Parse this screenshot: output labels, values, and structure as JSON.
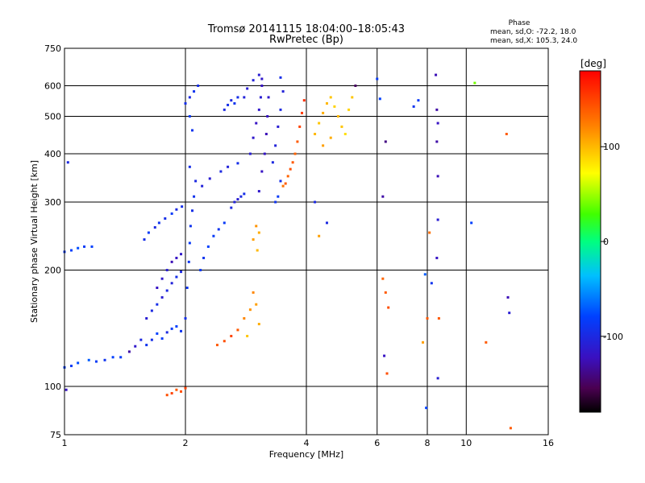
{
  "header": {
    "title_line1": "Tromsø 20141115 18:04:00–18:05:43",
    "title_line2": "RwPretec (Bp)",
    "phase_title": "Phase",
    "phase_o": "mean, sd,O: -72.2, 18.0",
    "phase_x": "mean, sd,X: 105.3, 24.0"
  },
  "colorbar": {
    "unit": "[deg]",
    "ticks": [
      {
        "label": "100",
        "value": 100
      },
      {
        "label": "0",
        "value": 0
      },
      {
        "label": "-100",
        "value": -100
      }
    ]
  },
  "chart_data": {
    "type": "scatter",
    "xlabel": "Frequency [MHz]",
    "ylabel": "Stationary phase Virtual Height [km]",
    "x_scale": "log",
    "y_scale": "log",
    "xlim": [
      1,
      16
    ],
    "ylim": [
      75,
      750
    ],
    "grid": true,
    "x_ticks": [
      {
        "label": "1",
        "value": 1
      },
      {
        "label": "2",
        "value": 2
      },
      {
        "label": "4",
        "value": 4
      },
      {
        "label": "6",
        "value": 6
      },
      {
        "label": "8",
        "value": 8
      },
      {
        "label": "10",
        "value": 10
      },
      {
        "label": "16",
        "value": 16
      }
    ],
    "y_ticks": [
      {
        "label": "75",
        "value": 75
      },
      {
        "label": "100",
        "value": 100
      },
      {
        "label": "200",
        "value": 200
      },
      {
        "label": "300",
        "value": 300
      },
      {
        "label": "400",
        "value": 400
      },
      {
        "label": "500",
        "value": 500
      },
      {
        "label": "600",
        "value": 600
      },
      {
        "label": "750",
        "value": 750
      }
    ],
    "color_scale": "phase [deg], rainbow from -180 (black/purple) to 180 (red)",
    "points": [
      [
        1.0,
        223,
        -85
      ],
      [
        1.04,
        225,
        -80
      ],
      [
        1.08,
        228,
        -75
      ],
      [
        1.12,
        230,
        -85
      ],
      [
        1.17,
        230,
        -80
      ],
      [
        1.0,
        112,
        -80
      ],
      [
        1.04,
        113,
        -85
      ],
      [
        1.08,
        115,
        -75
      ],
      [
        1.15,
        117,
        -70
      ],
      [
        1.2,
        116,
        -85
      ],
      [
        1.26,
        117,
        -90
      ],
      [
        1.32,
        119,
        -80
      ],
      [
        1.38,
        119,
        -85
      ],
      [
        1.01,
        98,
        -120
      ],
      [
        1.02,
        380,
        -100
      ],
      [
        1.45,
        123,
        -130
      ],
      [
        1.5,
        127,
        -115
      ],
      [
        1.55,
        132,
        -100
      ],
      [
        1.6,
        128,
        -90
      ],
      [
        1.65,
        132,
        -95
      ],
      [
        1.7,
        137,
        -80
      ],
      [
        1.75,
        133,
        -85
      ],
      [
        1.8,
        138,
        -100
      ],
      [
        1.85,
        141,
        -85
      ],
      [
        1.9,
        143,
        -80
      ],
      [
        1.95,
        139,
        -90
      ],
      [
        1.6,
        150,
        -110
      ],
      [
        1.65,
        157,
        -100
      ],
      [
        1.7,
        163,
        -95
      ],
      [
        1.75,
        170,
        -110
      ],
      [
        1.8,
        177,
        -100
      ],
      [
        1.85,
        185,
        -105
      ],
      [
        1.9,
        192,
        -95
      ],
      [
        1.95,
        198,
        -100
      ],
      [
        1.58,
        240,
        -95
      ],
      [
        1.62,
        250,
        -85
      ],
      [
        1.68,
        258,
        -100
      ],
      [
        1.72,
        265,
        -90
      ],
      [
        1.78,
        272,
        -95
      ],
      [
        1.85,
        280,
        -85
      ],
      [
        1.9,
        287,
        -100
      ],
      [
        1.96,
        292,
        -95
      ],
      [
        1.7,
        180,
        -120
      ],
      [
        1.75,
        190,
        -115
      ],
      [
        1.8,
        200,
        -110
      ],
      [
        1.85,
        210,
        -125
      ],
      [
        1.9,
        215,
        -120
      ],
      [
        1.95,
        220,
        -115
      ],
      [
        2.0,
        150,
        -95
      ],
      [
        2.02,
        180,
        -90
      ],
      [
        2.04,
        210,
        -88
      ],
      [
        2.05,
        235,
        -85
      ],
      [
        2.06,
        260,
        -90
      ],
      [
        2.08,
        285,
        -95
      ],
      [
        2.1,
        310,
        -92
      ],
      [
        2.12,
        340,
        -100
      ],
      [
        2.05,
        370,
        -95
      ],
      [
        2.0,
        540,
        -95
      ],
      [
        2.05,
        560,
        -100
      ],
      [
        2.1,
        580,
        -90
      ],
      [
        2.15,
        600,
        -95
      ],
      [
        2.05,
        500,
        -85
      ],
      [
        2.08,
        460,
        -90
      ],
      [
        2.18,
        200,
        -85
      ],
      [
        2.22,
        215,
        -90
      ],
      [
        2.28,
        230,
        -80
      ],
      [
        2.35,
        245,
        -85
      ],
      [
        2.42,
        255,
        -90
      ],
      [
        2.5,
        265,
        -85
      ],
      [
        2.6,
        290,
        -100
      ],
      [
        2.65,
        300,
        -105
      ],
      [
        2.7,
        305,
        -110
      ],
      [
        2.75,
        310,
        -100
      ],
      [
        2.8,
        315,
        -95
      ],
      [
        2.2,
        330,
        -105
      ],
      [
        2.3,
        345,
        -110
      ],
      [
        2.45,
        360,
        -100
      ],
      [
        2.55,
        370,
        -105
      ],
      [
        2.7,
        378,
        -95
      ],
      [
        2.5,
        520,
        -100
      ],
      [
        2.55,
        535,
        -95
      ],
      [
        2.6,
        550,
        -100
      ],
      [
        2.65,
        540,
        -90
      ],
      [
        2.7,
        560,
        -95
      ],
      [
        2.8,
        560,
        -105
      ],
      [
        2.85,
        590,
        -110
      ],
      [
        2.95,
        620,
        -105
      ],
      [
        3.05,
        640,
        -110
      ],
      [
        3.1,
        625,
        -115
      ],
      [
        2.9,
        400,
        -110
      ],
      [
        2.95,
        440,
        -115
      ],
      [
        3.0,
        480,
        -120
      ],
      [
        3.05,
        520,
        -115
      ],
      [
        3.08,
        560,
        -110
      ],
      [
        3.1,
        600,
        -120
      ],
      [
        3.05,
        320,
        -115
      ],
      [
        3.1,
        360,
        -120
      ],
      [
        3.15,
        400,
        -118
      ],
      [
        3.18,
        450,
        -125
      ],
      [
        3.2,
        500,
        -120
      ],
      [
        3.22,
        560,
        -115
      ],
      [
        3.3,
        380,
        -100
      ],
      [
        3.35,
        420,
        -105
      ],
      [
        3.4,
        470,
        -110
      ],
      [
        3.45,
        520,
        -100
      ],
      [
        3.5,
        580,
        -105
      ],
      [
        3.45,
        630,
        -95
      ],
      [
        3.35,
        300,
        -90
      ],
      [
        3.4,
        310,
        -85
      ],
      [
        3.45,
        340,
        -95
      ],
      [
        3.5,
        330,
        130
      ],
      [
        3.55,
        335,
        140
      ],
      [
        3.6,
        350,
        135
      ],
      [
        3.65,
        365,
        145
      ],
      [
        3.7,
        380,
        140
      ],
      [
        3.75,
        400,
        135
      ],
      [
        3.8,
        430,
        140
      ],
      [
        3.85,
        470,
        150
      ],
      [
        3.9,
        510,
        155
      ],
      [
        3.95,
        550,
        160
      ],
      [
        4.2,
        450,
        100
      ],
      [
        4.3,
        480,
        95
      ],
      [
        4.4,
        510,
        105
      ],
      [
        4.5,
        540,
        100
      ],
      [
        4.6,
        560,
        95
      ],
      [
        4.7,
        530,
        90
      ],
      [
        4.8,
        500,
        100
      ],
      [
        4.9,
        470,
        95
      ],
      [
        5.0,
        450,
        85
      ],
      [
        5.1,
        520,
        90
      ],
      [
        5.2,
        560,
        95
      ],
      [
        4.4,
        420,
        110
      ],
      [
        4.6,
        440,
        105
      ],
      [
        5.3,
        600,
        -150
      ],
      [
        2.4,
        128,
        140
      ],
      [
        2.5,
        131,
        145
      ],
      [
        2.6,
        135,
        150
      ],
      [
        2.7,
        140,
        140
      ],
      [
        2.8,
        150,
        120
      ],
      [
        2.9,
        158,
        115
      ],
      [
        3.0,
        163,
        110
      ],
      [
        2.95,
        175,
        120
      ],
      [
        3.05,
        145,
        105
      ],
      [
        2.85,
        135,
        95
      ],
      [
        2.95,
        240,
        110
      ],
      [
        3.05,
        250,
        105
      ],
      [
        3.0,
        260,
        115
      ],
      [
        3.02,
        225,
        100
      ],
      [
        1.8,
        95,
        145
      ],
      [
        1.85,
        96,
        150
      ],
      [
        1.9,
        98,
        140
      ],
      [
        1.95,
        97,
        145
      ],
      [
        2.0,
        99,
        150
      ],
      [
        6.2,
        190,
        135
      ],
      [
        6.3,
        175,
        140
      ],
      [
        6.4,
        160,
        145
      ],
      [
        6.25,
        120,
        -120
      ],
      [
        6.35,
        108,
        145
      ],
      [
        6.2,
        310,
        -130
      ],
      [
        6.3,
        430,
        -140
      ],
      [
        7.8,
        130,
        110
      ],
      [
        7.9,
        195,
        -70
      ],
      [
        8.0,
        150,
        140
      ],
      [
        8.1,
        250,
        130
      ],
      [
        8.2,
        185,
        -90
      ],
      [
        7.95,
        88,
        -80
      ],
      [
        8.4,
        640,
        -125
      ],
      [
        8.45,
        520,
        -130
      ],
      [
        8.5,
        480,
        -120
      ],
      [
        8.45,
        430,
        -130
      ],
      [
        8.5,
        350,
        -125
      ],
      [
        8.5,
        270,
        -110
      ],
      [
        8.45,
        215,
        -120
      ],
      [
        8.55,
        150,
        140
      ],
      [
        8.5,
        105,
        -110
      ],
      [
        7.4,
        530,
        -90
      ],
      [
        7.6,
        550,
        -85
      ],
      [
        6.0,
        625,
        -85
      ],
      [
        6.1,
        555,
        -80
      ],
      [
        10.5,
        610,
        40
      ],
      [
        11.2,
        130,
        140
      ],
      [
        12.7,
        170,
        -125
      ],
      [
        12.8,
        155,
        -110
      ],
      [
        12.6,
        450,
        140
      ],
      [
        12.9,
        78,
        140
      ],
      [
        10.3,
        265,
        -80
      ],
      [
        4.3,
        245,
        110
      ],
      [
        4.5,
        265,
        -100
      ],
      [
        4.2,
        300,
        -100
      ]
    ]
  }
}
